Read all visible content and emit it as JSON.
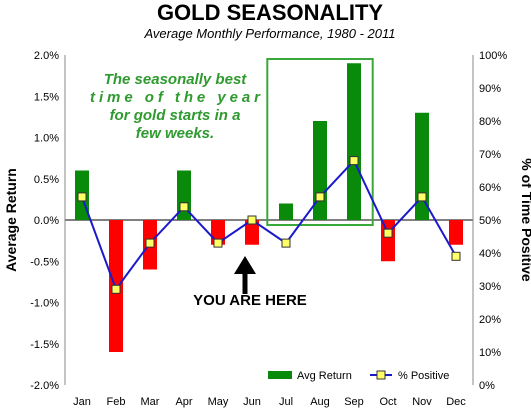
{
  "chart_data": {
    "type": "bar",
    "title": "GOLD SEASONALITY",
    "subtitle": "Average Monthly Performance, 1980 - 2011",
    "ylabel": "Average Return",
    "y2label": "% of Time Positive",
    "categories": [
      "Jan",
      "Feb",
      "Mar",
      "Apr",
      "May",
      "Jun",
      "Jul",
      "Aug",
      "Sep",
      "Oct",
      "Nov",
      "Dec"
    ],
    "ylim": [
      -2.0,
      2.0
    ],
    "y2lim": [
      0,
      100
    ],
    "yticks": [
      "2.0%",
      "1.5%",
      "1.0%",
      "0.5%",
      "0.0%",
      "-0.5%",
      "-1.0%",
      "-1.5%",
      "-2.0%"
    ],
    "y2ticks": [
      "100%",
      "90%",
      "80%",
      "70%",
      "60%",
      "50%",
      "40%",
      "30%",
      "20%",
      "10%",
      "0%"
    ],
    "series": [
      {
        "name": "Avg Return",
        "type": "bar",
        "values": [
          0.6,
          -1.6,
          -0.6,
          0.6,
          -0.3,
          -0.3,
          0.2,
          1.2,
          1.9,
          -0.5,
          1.3,
          -0.3
        ]
      },
      {
        "name": "% Positive",
        "type": "line",
        "axis": "right",
        "values": [
          57,
          29,
          43,
          54,
          43,
          50,
          43,
          57,
          68,
          46,
          57,
          39
        ]
      }
    ],
    "colors": {
      "positive": "#0a8a0a",
      "negative": "#ff0000",
      "line": "#1a1acc",
      "marker_fill": "#ffff66",
      "highlight": "#3aa83a"
    },
    "grid": false,
    "legend_position": "bottom-right",
    "annotations": {
      "note_lines": [
        "The seasonally best",
        "time of the year",
        "for gold starts in a",
        "few weeks."
      ],
      "you_are_here": "YOU ARE HERE",
      "highlight_months": [
        "Jul",
        "Sep"
      ]
    }
  }
}
